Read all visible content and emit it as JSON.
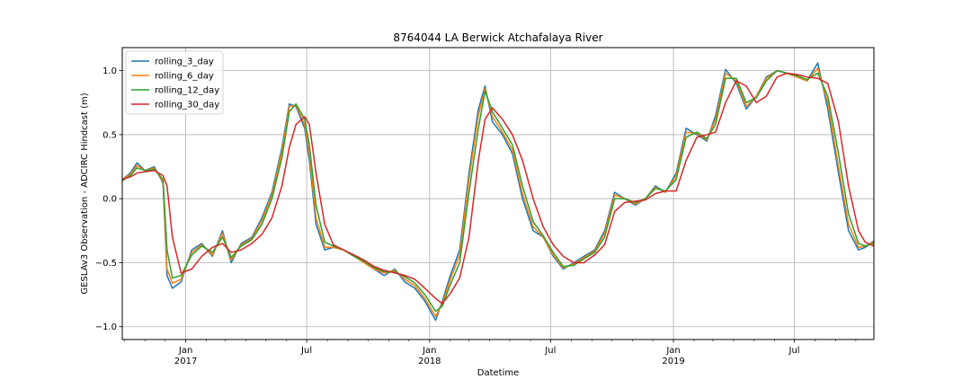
{
  "chart_data": {
    "type": "line",
    "title": "8764044 LA Berwick Atchafalaya River",
    "xlabel": "Datetime",
    "ylabel": "GESLAv3 Observation - ADCIRC Hindcast (m)",
    "xlim": [
      "2016-09-28",
      "2019-10-28"
    ],
    "ylim": [
      -1.1,
      1.18
    ],
    "grid": true,
    "legend_position": "top-left",
    "yticks": [
      "1.0",
      "0.5",
      "0.0",
      "−0.5",
      "−1.0"
    ],
    "ytick_values": [
      1.0,
      0.5,
      0.0,
      -0.5,
      -1.0
    ],
    "xticks": [
      {
        "date": "2017-01-01",
        "label": "Jan",
        "sub": "2017"
      },
      {
        "date": "2017-07-01",
        "label": "Jul",
        "sub": ""
      },
      {
        "date": "2018-01-01",
        "label": "Jan",
        "sub": "2018"
      },
      {
        "date": "2018-07-01",
        "label": "Jul",
        "sub": ""
      },
      {
        "date": "2019-01-01",
        "label": "Jan",
        "sub": "2019"
      },
      {
        "date": "2019-07-01",
        "label": "Jul",
        "sub": ""
      }
    ],
    "x": [
      "2016-09-28",
      "2016-10-10",
      "2016-10-20",
      "2016-11-01",
      "2016-11-15",
      "2016-11-28",
      "2016-12-04",
      "2016-12-12",
      "2016-12-25",
      "2017-01-10",
      "2017-01-25",
      "2017-02-10",
      "2017-02-25",
      "2017-03-10",
      "2017-03-25",
      "2017-04-10",
      "2017-04-25",
      "2017-05-10",
      "2017-05-25",
      "2017-06-05",
      "2017-06-15",
      "2017-06-28",
      "2017-07-05",
      "2017-07-15",
      "2017-07-28",
      "2017-08-10",
      "2017-08-25",
      "2017-09-10",
      "2017-09-25",
      "2017-10-10",
      "2017-10-25",
      "2017-11-10",
      "2017-11-25",
      "2017-12-10",
      "2017-12-25",
      "2018-01-10",
      "2018-01-20",
      "2018-02-01",
      "2018-02-15",
      "2018-03-01",
      "2018-03-15",
      "2018-03-25",
      "2018-04-05",
      "2018-04-20",
      "2018-05-05",
      "2018-05-20",
      "2018-06-05",
      "2018-06-20",
      "2018-07-05",
      "2018-07-20",
      "2018-08-05",
      "2018-08-20",
      "2018-09-05",
      "2018-09-20",
      "2018-10-05",
      "2018-10-20",
      "2018-11-05",
      "2018-11-20",
      "2018-12-05",
      "2018-12-20",
      "2019-01-05",
      "2019-01-20",
      "2019-02-05",
      "2019-02-20",
      "2019-03-05",
      "2019-03-20",
      "2019-04-05",
      "2019-04-20",
      "2019-05-05",
      "2019-05-20",
      "2019-06-05",
      "2019-06-20",
      "2019-07-05",
      "2019-07-20",
      "2019-08-05",
      "2019-08-20",
      "2019-09-05",
      "2019-09-20",
      "2019-10-05",
      "2019-10-15",
      "2019-10-28"
    ],
    "series": [
      {
        "name": "rolling_3_day",
        "color": "#1f77b4",
        "values": [
          0.15,
          0.2,
          0.28,
          0.22,
          0.25,
          0.12,
          -0.6,
          -0.7,
          -0.65,
          -0.4,
          -0.35,
          -0.45,
          -0.25,
          -0.5,
          -0.35,
          -0.3,
          -0.15,
          0.05,
          0.4,
          0.74,
          0.72,
          0.55,
          0.3,
          -0.2,
          -0.4,
          -0.38,
          -0.4,
          -0.45,
          -0.5,
          -0.55,
          -0.6,
          -0.55,
          -0.65,
          -0.7,
          -0.8,
          -0.95,
          -0.8,
          -0.6,
          -0.4,
          0.2,
          0.7,
          0.88,
          0.6,
          0.5,
          0.35,
          0.0,
          -0.25,
          -0.3,
          -0.45,
          -0.55,
          -0.5,
          -0.45,
          -0.4,
          -0.25,
          0.05,
          0.0,
          -0.05,
          0.0,
          0.1,
          0.05,
          0.2,
          0.55,
          0.5,
          0.45,
          0.65,
          1.01,
          0.9,
          0.7,
          0.8,
          0.95,
          1.0,
          0.98,
          0.95,
          0.92,
          1.06,
          0.7,
          0.2,
          -0.25,
          -0.4,
          -0.38,
          -0.33
        ]
      },
      {
        "name": "rolling_6_day",
        "color": "#ff7f0e",
        "values": [
          0.15,
          0.19,
          0.26,
          0.22,
          0.24,
          0.13,
          -0.55,
          -0.66,
          -0.63,
          -0.42,
          -0.36,
          -0.44,
          -0.27,
          -0.48,
          -0.36,
          -0.31,
          -0.17,
          0.03,
          0.37,
          0.72,
          0.73,
          0.58,
          0.35,
          -0.15,
          -0.38,
          -0.38,
          -0.4,
          -0.45,
          -0.5,
          -0.55,
          -0.58,
          -0.56,
          -0.63,
          -0.68,
          -0.78,
          -0.92,
          -0.82,
          -0.63,
          -0.44,
          0.15,
          0.65,
          0.86,
          0.64,
          0.52,
          0.38,
          0.04,
          -0.22,
          -0.3,
          -0.44,
          -0.54,
          -0.51,
          -0.46,
          -0.41,
          -0.27,
          0.03,
          0.0,
          -0.04,
          0.0,
          0.09,
          0.05,
          0.18,
          0.52,
          0.51,
          0.46,
          0.62,
          0.98,
          0.92,
          0.72,
          0.8,
          0.94,
          1.0,
          0.98,
          0.95,
          0.92,
          1.02,
          0.75,
          0.25,
          -0.2,
          -0.38,
          -0.37,
          -0.34
        ]
      },
      {
        "name": "rolling_12_day",
        "color": "#2ca02c",
        "values": [
          0.14,
          0.18,
          0.24,
          0.22,
          0.23,
          0.15,
          -0.4,
          -0.62,
          -0.6,
          -0.44,
          -0.37,
          -0.42,
          -0.3,
          -0.46,
          -0.37,
          -0.32,
          -0.2,
          0.0,
          0.32,
          0.68,
          0.74,
          0.62,
          0.42,
          -0.05,
          -0.34,
          -0.37,
          -0.4,
          -0.45,
          -0.49,
          -0.54,
          -0.57,
          -0.57,
          -0.61,
          -0.66,
          -0.75,
          -0.88,
          -0.84,
          -0.67,
          -0.5,
          0.05,
          0.55,
          0.84,
          0.68,
          0.55,
          0.42,
          0.1,
          -0.18,
          -0.29,
          -0.42,
          -0.53,
          -0.52,
          -0.47,
          -0.42,
          -0.3,
          0.0,
          0.0,
          -0.03,
          0.0,
          0.08,
          0.06,
          0.15,
          0.48,
          0.52,
          0.47,
          0.58,
          0.94,
          0.94,
          0.75,
          0.79,
          0.92,
          1.0,
          0.98,
          0.96,
          0.93,
          0.98,
          0.8,
          0.35,
          -0.12,
          -0.35,
          -0.37,
          -0.35
        ]
      },
      {
        "name": "rolling_30_day",
        "color": "#d62728",
        "values": [
          0.15,
          0.17,
          0.2,
          0.21,
          0.22,
          0.18,
          0.1,
          -0.3,
          -0.58,
          -0.55,
          -0.45,
          -0.38,
          -0.35,
          -0.42,
          -0.4,
          -0.35,
          -0.28,
          -0.15,
          0.1,
          0.4,
          0.58,
          0.64,
          0.58,
          0.2,
          -0.2,
          -0.36,
          -0.4,
          -0.44,
          -0.48,
          -0.53,
          -0.56,
          -0.58,
          -0.6,
          -0.63,
          -0.7,
          -0.78,
          -0.82,
          -0.74,
          -0.62,
          -0.3,
          0.3,
          0.62,
          0.71,
          0.62,
          0.5,
          0.3,
          0.0,
          -0.22,
          -0.36,
          -0.45,
          -0.5,
          -0.5,
          -0.44,
          -0.36,
          -0.1,
          -0.03,
          -0.02,
          -0.01,
          0.04,
          0.06,
          0.06,
          0.3,
          0.48,
          0.5,
          0.52,
          0.75,
          0.92,
          0.88,
          0.75,
          0.8,
          0.95,
          0.98,
          0.97,
          0.95,
          0.94,
          0.9,
          0.6,
          0.1,
          -0.25,
          -0.34,
          -0.37
        ]
      }
    ]
  }
}
